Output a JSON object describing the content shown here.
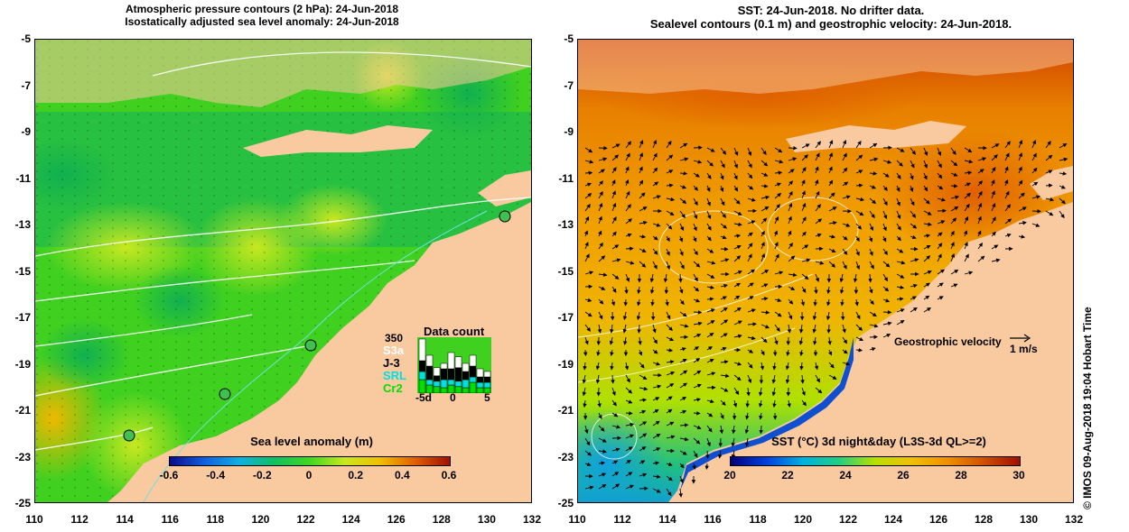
{
  "left_panel": {
    "title_line1": "Atmospheric pressure contours (2 hPa): 24-Jun-2018",
    "title_line2": "Isostatically adjusted sea level anomaly: 24-Jun-2018",
    "colorbar": {
      "label": "Sea level anomaly (m)",
      "ticks": [
        "-0.6",
        "-0.4",
        "-0.2",
        "0",
        "0.2",
        "0.4",
        "0.6"
      ]
    },
    "data_count": {
      "title": "Data count",
      "max_label": "350",
      "missions": [
        {
          "name": "S3a",
          "color": "#ffffff"
        },
        {
          "name": "J-3",
          "color": "#000000"
        },
        {
          "name": "SRL",
          "color": "#00e0e0"
        },
        {
          "name": "Cr2",
          "color": "#00e000"
        }
      ],
      "axis_labels": [
        "-5d",
        "0",
        "5"
      ]
    }
  },
  "right_panel": {
    "title_line1": "SST: 24-Jun-2018. No drifter data.",
    "title_line2": "Sealevel contours (0.1 m) and geostrophic velocity: 24-Jun-2018.",
    "velocity_legend_label": "Geostrophic velocity",
    "velocity_legend_unit": "1 m/s",
    "colorbar": {
      "label": "SST (°C) 3d night&day (L3S-3d QL>=2)",
      "ticks": [
        "20",
        "22",
        "24",
        "26",
        "28",
        "30"
      ]
    }
  },
  "axes": {
    "y_ticks": [
      "-5",
      "-7",
      "-9",
      "-11",
      "-13",
      "-15",
      "-17",
      "-19",
      "-21",
      "-23",
      "-25"
    ],
    "x_ticks": [
      "110",
      "112",
      "114",
      "116",
      "118",
      "120",
      "122",
      "124",
      "126",
      "128",
      "130",
      "132"
    ]
  },
  "colors": {
    "land": "#f9c9a0",
    "sla_ramp": [
      "#0b0b8c",
      "#1060e0",
      "#10b0e0",
      "#10c060",
      "#40d820",
      "#c8e820",
      "#f0c000",
      "#e06000",
      "#a01000"
    ],
    "sst_ramp": [
      "#00007a",
      "#0040e0",
      "#00b0e0",
      "#20d080",
      "#b8e000",
      "#f0c000",
      "#f09000",
      "#d05000",
      "#a01000"
    ]
  },
  "credit": "© IMOS 09-Aug-2018 19:04 Hobart Time"
}
